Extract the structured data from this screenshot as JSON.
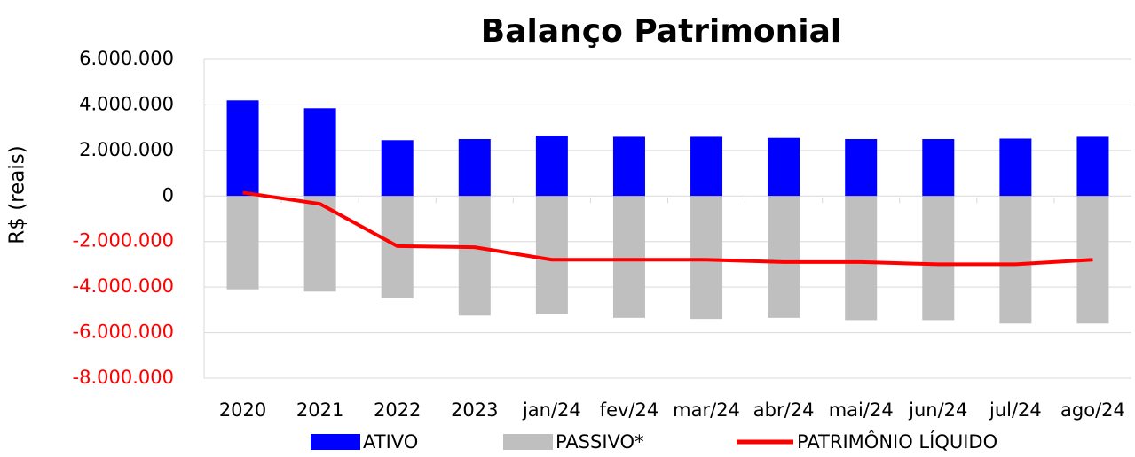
{
  "chart_data": {
    "type": "bar_line",
    "title": "Balanço Patrimonial",
    "ylabel": "R$ (reais)",
    "categories": [
      "2020",
      "2021",
      "2022",
      "2023",
      "jan/24",
      "fev/24",
      "mar/24",
      "abr/24",
      "mai/24",
      "jun/24",
      "jul/24",
      "ago/24"
    ],
    "series": [
      {
        "name": "ATIVO",
        "type": "bar",
        "color": "#0000ff",
        "values": [
          4200000,
          3850000,
          2450000,
          2500000,
          2650000,
          2600000,
          2600000,
          2550000,
          2500000,
          2500000,
          2520000,
          2600000
        ]
      },
      {
        "name": "PASSIVO*",
        "type": "bar",
        "color": "#bfbfbf",
        "values": [
          -4100000,
          -4200000,
          -4500000,
          -5250000,
          -5200000,
          -5350000,
          -5400000,
          -5350000,
          -5450000,
          -5450000,
          -5600000,
          -5600000
        ]
      },
      {
        "name": "PATRIMÔNIO LÍQUIDO",
        "type": "line",
        "color": "#ff0000",
        "values": [
          150000,
          -350000,
          -2200000,
          -2250000,
          -2800000,
          -2800000,
          -2800000,
          -2900000,
          -2900000,
          -3000000,
          -3000000,
          -2800000
        ]
      }
    ],
    "ylim": [
      -8000000,
      6000000
    ],
    "yticks": [
      {
        "value": -8000000,
        "label": "-8.000.000"
      },
      {
        "value": -6000000,
        "label": "-6.000.000"
      },
      {
        "value": -4000000,
        "label": "-4.000.000"
      },
      {
        "value": -2000000,
        "label": "-2.000.000"
      },
      0,
      {
        "value": 2000000,
        "label": "2.000.000"
      },
      {
        "value": 4000000,
        "label": "4.000.000"
      },
      {
        "value": 6000000,
        "label": "6.000.000"
      }
    ],
    "negative_tick_color": "#ff0000",
    "grid": true,
    "legend": "bottom"
  }
}
